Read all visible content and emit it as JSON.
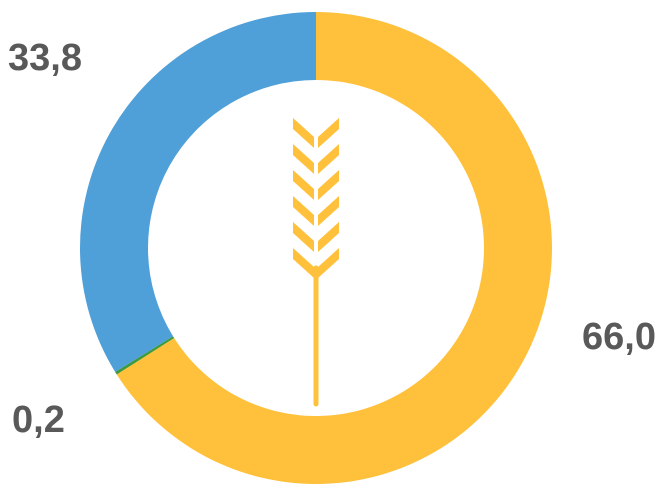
{
  "chart_data": {
    "type": "pie",
    "variant": "donut",
    "slices": [
      {
        "label": "66,0",
        "value": 66.0,
        "color": "#FFC13B"
      },
      {
        "label": "0,2",
        "value": 0.2,
        "color": "#3E9A3E"
      },
      {
        "label": "33,8",
        "value": 33.8,
        "color": "#4F9FD8"
      }
    ],
    "center_icon": "wheat-ear-icon",
    "icon_color": "#FFC13B"
  }
}
